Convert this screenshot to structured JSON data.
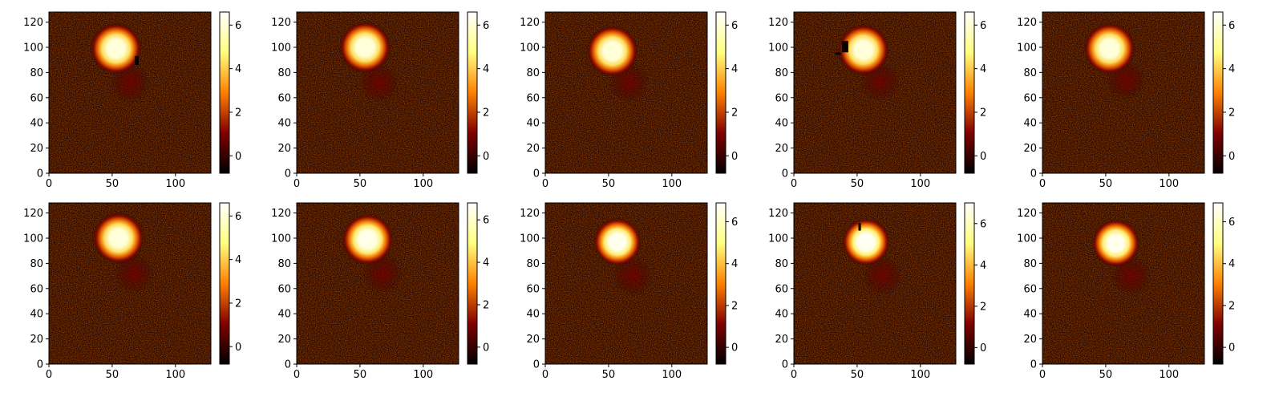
{
  "figure": {
    "layout": {
      "rows": 2,
      "cols": 5
    },
    "colormap": "afmhot",
    "colormap_stops": [
      "#000000",
      "#800000",
      "#ff8000",
      "#ffff80",
      "#ffffff"
    ],
    "colormap_range": [
      -0.8,
      7.0
    ],
    "noise_color": "#2a0800"
  },
  "chart_data": [
    {
      "type": "heatmap",
      "panel": 1,
      "xlim": [
        0,
        128
      ],
      "ylim": [
        0,
        128
      ],
      "xticks": [
        0,
        50,
        100
      ],
      "yticks": [
        0,
        20,
        40,
        60,
        80,
        100,
        120
      ],
      "colorbar": {
        "range": [
          -0.8,
          6.6
        ],
        "ticks": [
          0,
          2,
          4,
          6
        ]
      },
      "primary_source": {
        "x": 53,
        "y": 99,
        "radius": 14,
        "peak": 6.5
      },
      "secondary_source": {
        "x": 64,
        "y": 72,
        "radius": 16,
        "peak": 0.9
      },
      "masked_regions": [
        {
          "x0": 68,
          "x1": 71,
          "y0": 86,
          "y1": 93
        }
      ]
    },
    {
      "type": "heatmap",
      "panel": 2,
      "xlim": [
        0,
        128
      ],
      "ylim": [
        0,
        128
      ],
      "xticks": [
        0,
        50,
        100
      ],
      "yticks": [
        0,
        20,
        40,
        60,
        80,
        100,
        120
      ],
      "colorbar": {
        "range": [
          -0.8,
          6.6
        ],
        "ticks": [
          0,
          2,
          4,
          6
        ]
      },
      "primary_source": {
        "x": 54,
        "y": 100,
        "radius": 14,
        "peak": 6.5
      },
      "secondary_source": {
        "x": 65,
        "y": 72,
        "radius": 16,
        "peak": 0.9
      },
      "masked_regions": []
    },
    {
      "type": "heatmap",
      "panel": 3,
      "xlim": [
        0,
        128
      ],
      "ylim": [
        0,
        128
      ],
      "xticks": [
        0,
        50,
        100
      ],
      "yticks": [
        0,
        20,
        40,
        60,
        80,
        100,
        120
      ],
      "colorbar": {
        "range": [
          -0.8,
          6.6
        ],
        "ticks": [
          0,
          2,
          4,
          6
        ]
      },
      "primary_source": {
        "x": 53,
        "y": 97,
        "radius": 14,
        "peak": 6.5
      },
      "secondary_source": {
        "x": 66,
        "y": 72,
        "radius": 16,
        "peak": 0.9
      },
      "masked_regions": []
    },
    {
      "type": "heatmap",
      "panel": 4,
      "xlim": [
        0,
        128
      ],
      "ylim": [
        0,
        128
      ],
      "xticks": [
        0,
        50,
        100
      ],
      "yticks": [
        0,
        20,
        40,
        60,
        80,
        100,
        120
      ],
      "colorbar": {
        "range": [
          -0.8,
          6.6
        ],
        "ticks": [
          0,
          2,
          4,
          6
        ]
      },
      "primary_source": {
        "x": 55,
        "y": 98,
        "radius": 14,
        "peak": 6.5
      },
      "secondary_source": {
        "x": 68,
        "y": 73,
        "radius": 16,
        "peak": 0.9
      },
      "masked_regions": [
        {
          "x0": 38,
          "x1": 43,
          "y0": 96,
          "y1": 105
        },
        {
          "x0": 33,
          "x1": 37,
          "y0": 94,
          "y1": 96
        }
      ]
    },
    {
      "type": "heatmap",
      "panel": 5,
      "xlim": [
        0,
        128
      ],
      "ylim": [
        0,
        128
      ],
      "xticks": [
        0,
        50,
        100
      ],
      "yticks": [
        0,
        20,
        40,
        60,
        80,
        100,
        120
      ],
      "colorbar": {
        "range": [
          -0.8,
          6.6
        ],
        "ticks": [
          0,
          2,
          4,
          6
        ]
      },
      "primary_source": {
        "x": 53,
        "y": 99,
        "radius": 14,
        "peak": 6.5
      },
      "secondary_source": {
        "x": 66,
        "y": 74,
        "radius": 16,
        "peak": 0.9
      },
      "masked_regions": []
    },
    {
      "type": "heatmap",
      "panel": 6,
      "xlim": [
        0,
        128
      ],
      "ylim": [
        0,
        128
      ],
      "xticks": [
        0,
        50,
        100
      ],
      "yticks": [
        0,
        20,
        40,
        60,
        80,
        100,
        120
      ],
      "colorbar": {
        "range": [
          -0.8,
          6.6
        ],
        "ticks": [
          0,
          2,
          4,
          6
        ]
      },
      "primary_source": {
        "x": 55,
        "y": 100,
        "radius": 14,
        "peak": 6.5
      },
      "secondary_source": {
        "x": 67,
        "y": 72,
        "radius": 16,
        "peak": 0.9
      },
      "masked_regions": []
    },
    {
      "type": "heatmap",
      "panel": 7,
      "xlim": [
        0,
        128
      ],
      "ylim": [
        0,
        128
      ],
      "xticks": [
        0,
        50,
        100
      ],
      "yticks": [
        0,
        20,
        40,
        60,
        80,
        100,
        120
      ],
      "colorbar": {
        "range": [
          -0.8,
          6.8
        ],
        "ticks": [
          0,
          2,
          4,
          6
        ]
      },
      "primary_source": {
        "x": 56,
        "y": 99,
        "radius": 14,
        "peak": 6.7
      },
      "secondary_source": {
        "x": 68,
        "y": 72,
        "radius": 16,
        "peak": 0.9
      },
      "masked_regions": []
    },
    {
      "type": "heatmap",
      "panel": 8,
      "xlim": [
        0,
        128
      ],
      "ylim": [
        0,
        128
      ],
      "xticks": [
        0,
        50,
        100
      ],
      "yticks": [
        0,
        20,
        40,
        60,
        80,
        100,
        120
      ],
      "colorbar": {
        "range": [
          -0.8,
          6.9
        ],
        "ticks": [
          0,
          2,
          4,
          6
        ]
      },
      "primary_source": {
        "x": 57,
        "y": 97,
        "radius": 13,
        "peak": 6.8
      },
      "secondary_source": {
        "x": 69,
        "y": 70,
        "radius": 16,
        "peak": 0.9
      },
      "masked_regions": []
    },
    {
      "type": "heatmap",
      "panel": 9,
      "xlim": [
        0,
        128
      ],
      "ylim": [
        0,
        128
      ],
      "xticks": [
        0,
        50,
        100
      ],
      "yticks": [
        0,
        20,
        40,
        60,
        80,
        100,
        120
      ],
      "colorbar": {
        "range": [
          -0.8,
          7.0
        ],
        "ticks": [
          0,
          2,
          4,
          6
        ]
      },
      "primary_source": {
        "x": 57,
        "y": 97,
        "radius": 13,
        "peak": 6.9
      },
      "secondary_source": {
        "x": 70,
        "y": 70,
        "radius": 16,
        "peak": 0.9
      },
      "masked_regions": [
        {
          "x0": 51,
          "x1": 53,
          "y0": 106,
          "y1": 112
        }
      ]
    },
    {
      "type": "heatmap",
      "panel": 10,
      "xlim": [
        0,
        128
      ],
      "ylim": [
        0,
        128
      ],
      "xticks": [
        0,
        50,
        100
      ],
      "yticks": [
        0,
        20,
        40,
        60,
        80,
        100,
        120
      ],
      "colorbar": {
        "range": [
          -0.8,
          6.9
        ],
        "ticks": [
          0,
          2,
          4,
          6
        ]
      },
      "primary_source": {
        "x": 58,
        "y": 96,
        "radius": 13,
        "peak": 6.8
      },
      "secondary_source": {
        "x": 70,
        "y": 70,
        "radius": 16,
        "peak": 0.9
      },
      "masked_regions": []
    }
  ]
}
